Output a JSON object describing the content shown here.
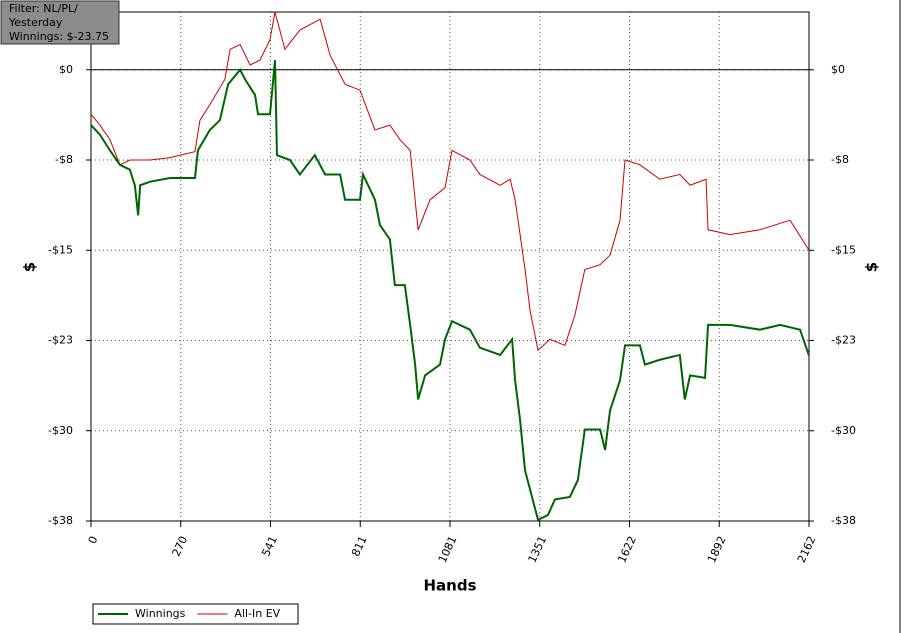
{
  "chart_data": {
    "type": "line",
    "annotation_lines": [
      "Filter: NL/PL/",
      "Yesterday",
      "Winnings: $-23.75"
    ],
    "x_label": "Hands",
    "y_label": "$",
    "y2_label": "$",
    "xlim": [
      0,
      2162
    ],
    "ylim": [
      -37.5,
      4.8
    ],
    "grid": true,
    "zero_line": true,
    "xticks": [
      0,
      {
        "value": 270.25,
        "label": "270"
      },
      {
        "value": 540.5,
        "label": "541"
      },
      {
        "value": 810.75,
        "label": "811"
      },
      1081,
      {
        "value": 1351.25,
        "label": "1351"
      },
      {
        "value": 1621.5,
        "label": "1622"
      },
      {
        "value": 1891.75,
        "label": "1892"
      },
      2162
    ],
    "yticks": [
      {
        "value": 0,
        "label": "$0"
      },
      {
        "value": -7.5,
        "label": "-$8"
      },
      {
        "value": -15,
        "label": "-$15"
      },
      {
        "value": -22.5,
        "label": "-$23"
      },
      {
        "value": -30,
        "label": "-$30"
      },
      {
        "value": -37.5,
        "label": "-$38"
      }
    ],
    "series": [
      {
        "name": "Winnings",
        "color": "#006400",
        "x": [
          0,
          27,
          57,
          87,
          117,
          132,
          142,
          148,
          178,
          238,
          313,
          322,
          358,
          388,
          413,
          449,
          464,
          494,
          503,
          539,
          554,
          560,
          599,
          629,
          674,
          705,
          750,
          765,
          810,
          819,
          855,
          870,
          900,
          915,
          945,
          961,
          976,
          985,
          1006,
          1051,
          1066,
          1087,
          1141,
          1171,
          1232,
          1268,
          1277,
          1292,
          1307,
          1346,
          1376,
          1397,
          1442,
          1466,
          1487,
          1533,
          1548,
          1563,
          1593,
          1608,
          1653,
          1668,
          1713,
          1773,
          1788,
          1804,
          1849,
          1858,
          1924,
          2014,
          2075,
          2135,
          2162
        ],
        "values": [
          -4.6,
          -5.4,
          -6.7,
          -7.9,
          -8.3,
          -9.6,
          -12.1,
          -9.6,
          -9.3,
          -9.0,
          -9.0,
          -6.7,
          -5.0,
          -4.2,
          -1.2,
          0,
          -0.8,
          -2.1,
          -3.7,
          -3.7,
          0.8,
          -7.1,
          -7.5,
          -8.7,
          -7.1,
          -8.7,
          -8.7,
          -10.8,
          -10.8,
          -8.7,
          -10.8,
          -12.9,
          -14.1,
          -17.9,
          -17.9,
          -21.2,
          -24.5,
          -27.4,
          -25.4,
          -24.5,
          -22.4,
          -20.9,
          -21.6,
          -23.1,
          -23.7,
          -22.4,
          -25.8,
          -29.1,
          -33.3,
          -37.4,
          -37.0,
          -35.7,
          -35.5,
          -34.1,
          -29.9,
          -29.9,
          -31.6,
          -28.3,
          -25.8,
          -22.9,
          -22.9,
          -24.5,
          -24.1,
          -23.7,
          -27.4,
          -25.4,
          -25.6,
          -21.2,
          -21.2,
          -21.6,
          -21.2,
          -21.6,
          -23.75
        ]
      },
      {
        "name": "All-In EV",
        "color": "#cc0000",
        "x": [
          0,
          27,
          57,
          87,
          117,
          178,
          238,
          313,
          328,
          358,
          403,
          419,
          449,
          479,
          509,
          539,
          554,
          584,
          629,
          690,
          720,
          765,
          810,
          855,
          900,
          930,
          961,
          985,
          1021,
          1066,
          1087,
          1141,
          1171,
          1232,
          1262,
          1277,
          1307,
          1322,
          1346,
          1382,
          1427,
          1457,
          1487,
          1533,
          1563,
          1593,
          1608,
          1653,
          1713,
          1773,
          1804,
          1852,
          1858,
          1924,
          2014,
          2105,
          2162
        ],
        "values": [
          -3.7,
          -4.6,
          -5.8,
          -7.9,
          -7.5,
          -7.5,
          -7.3,
          -6.8,
          -4.2,
          -2.9,
          -0.8,
          1.7,
          2.1,
          0.4,
          0.8,
          2.5,
          4.8,
          1.7,
          3.3,
          4.2,
          1.2,
          -1.2,
          -1.7,
          -5.0,
          -4.6,
          -5.8,
          -6.7,
          -13.3,
          -10.8,
          -9.8,
          -6.7,
          -7.5,
          -8.7,
          -9.6,
          -9.1,
          -10.8,
          -16.6,
          -20.0,
          -23.3,
          -22.4,
          -22.9,
          -20.4,
          -16.6,
          -16.2,
          -15.4,
          -12.5,
          -7.5,
          -7.9,
          -9.1,
          -8.7,
          -9.6,
          -9.1,
          -13.3,
          -13.7,
          -13.3,
          -12.5,
          -15.0
        ]
      }
    ]
  }
}
